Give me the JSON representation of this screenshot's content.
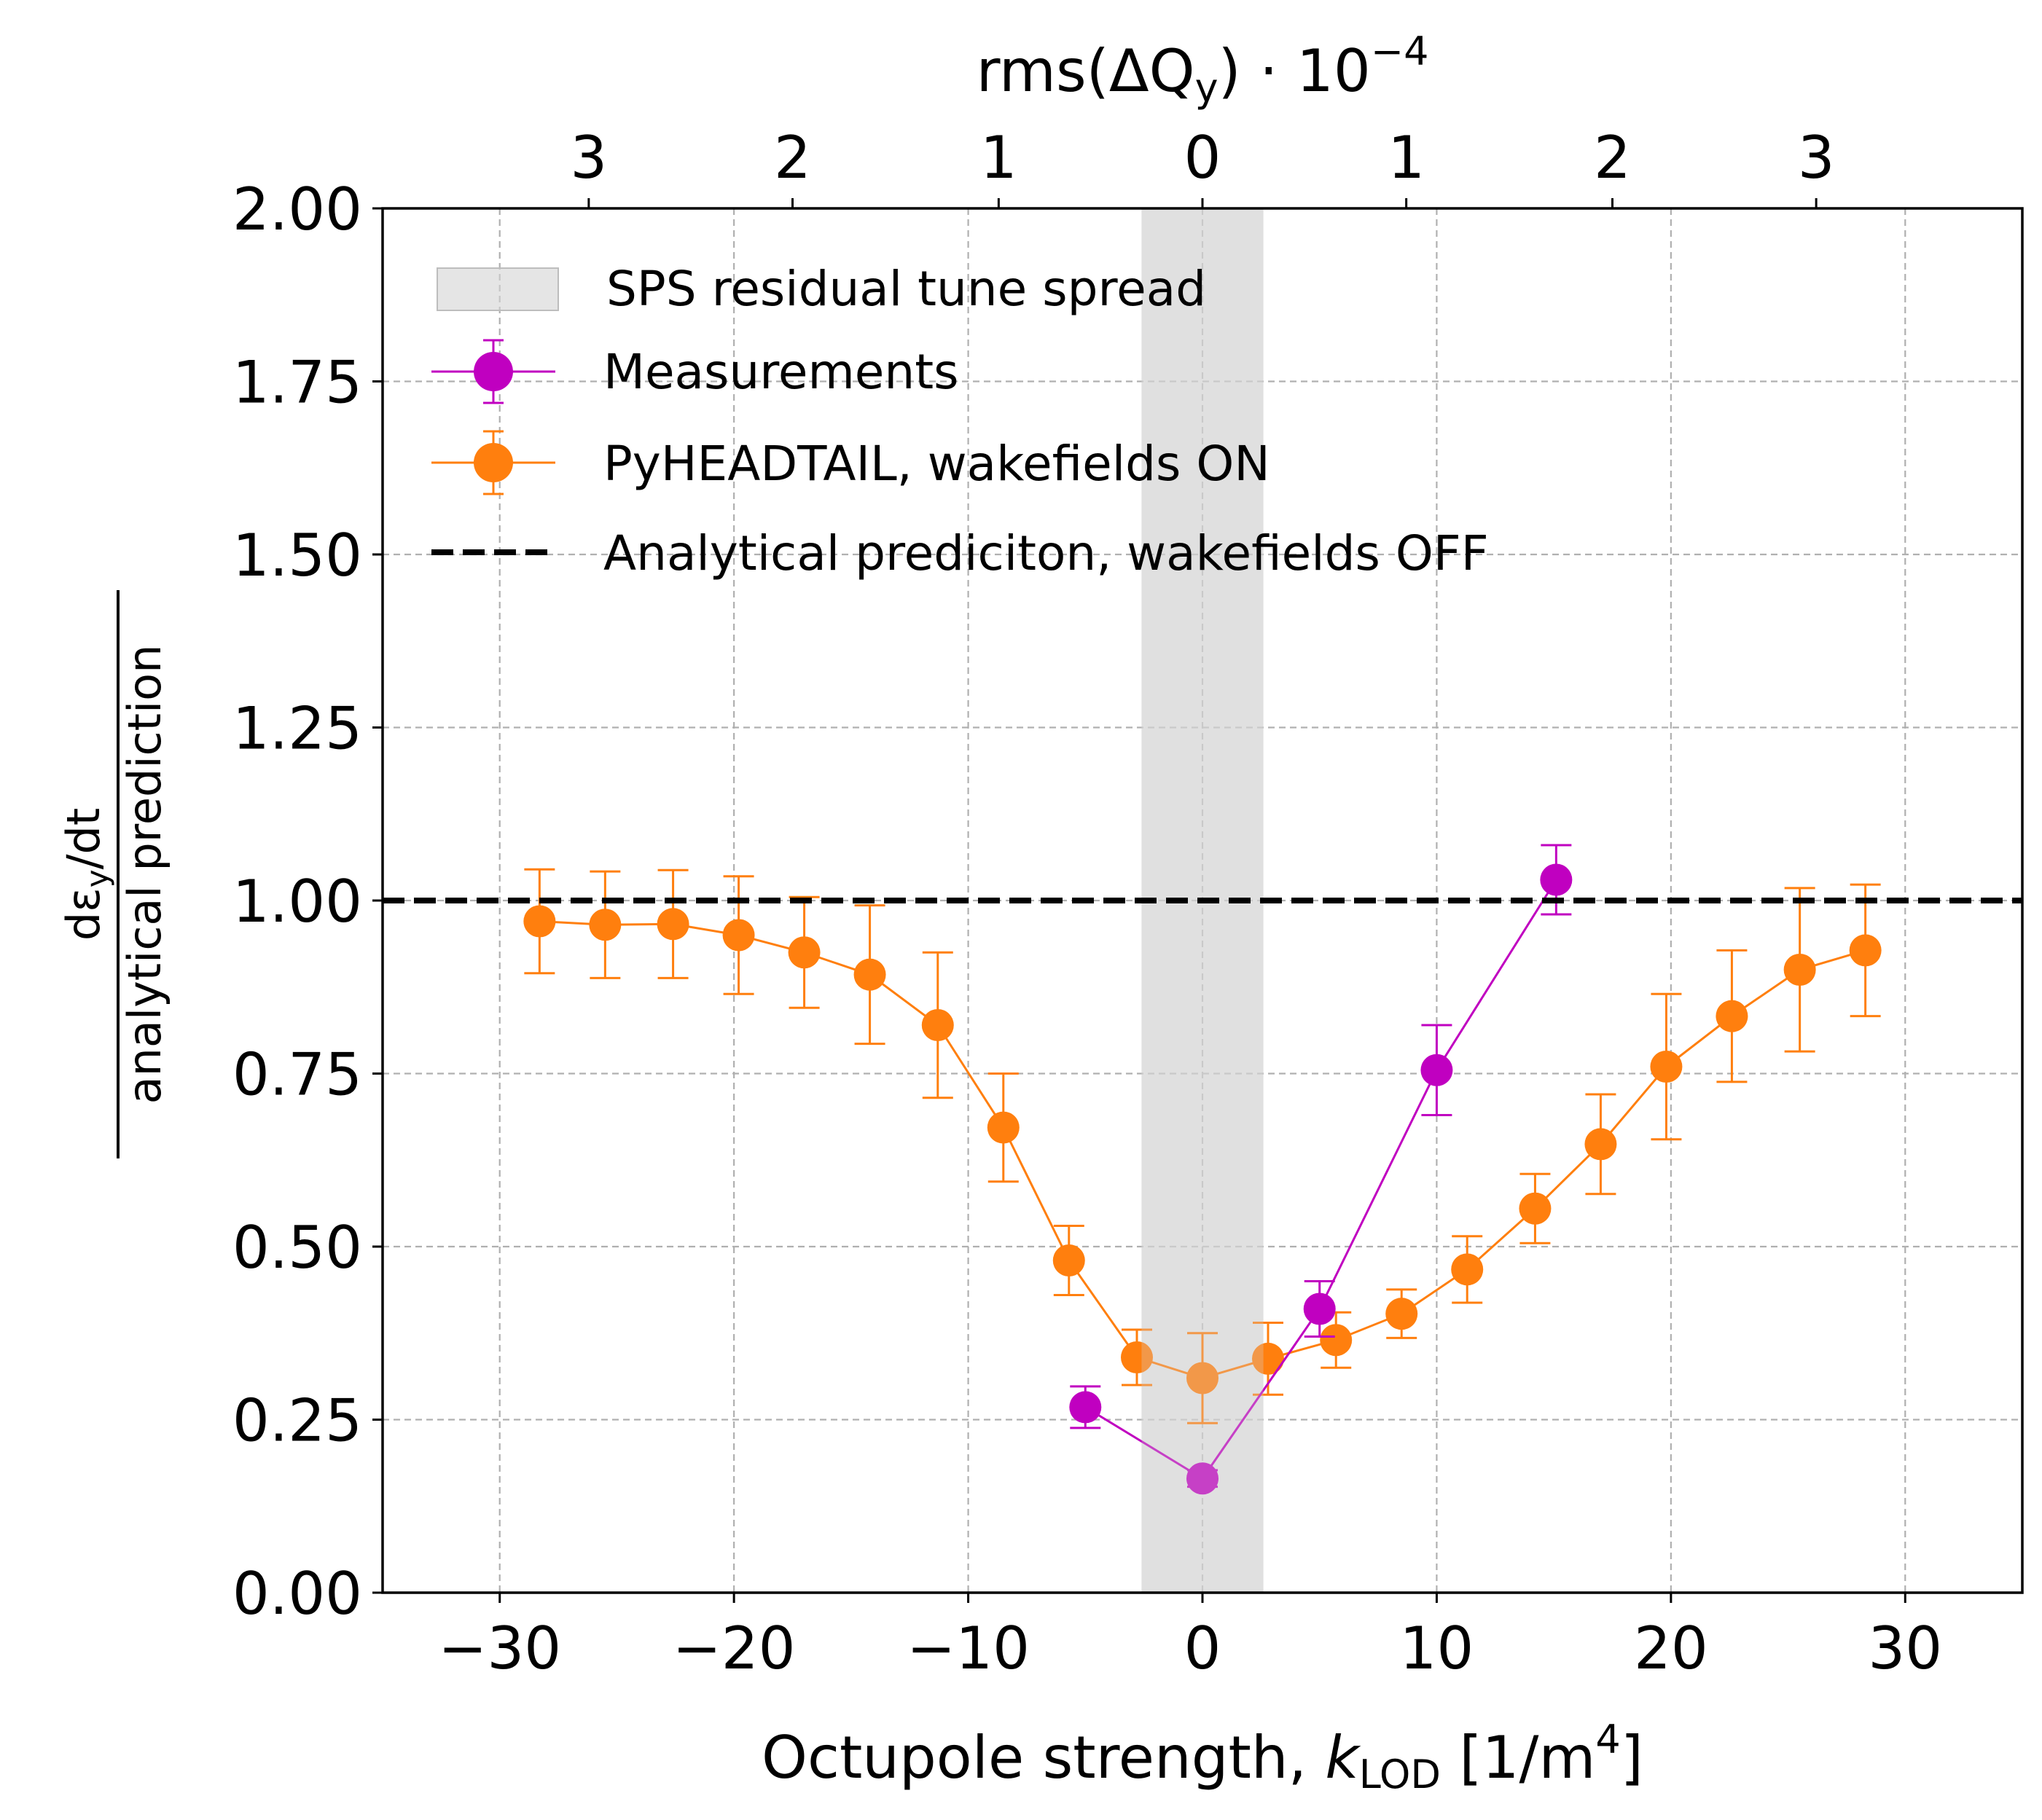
{
  "chart_data": {
    "type": "line",
    "xlabel": {
      "prefix": "Octupole strength, ",
      "var": "k",
      "sub": "LOD",
      "unit_pre": " [1/m",
      "unit_sup": "4",
      "unit_post": "]"
    },
    "ylabel": {
      "numerator_pre": "dε",
      "numerator_sub": "y",
      "numerator_post": "/dt",
      "denominator": "analytical prediction"
    },
    "top_axis_label": {
      "pre": "rms(ΔQ",
      "sub": "y",
      "post": ") · 10",
      "sup": "−4"
    },
    "xlim": [
      -35,
      35
    ],
    "ylim": [
      0,
      2
    ],
    "xticks": [
      -30,
      -20,
      -10,
      0,
      10,
      20,
      30
    ],
    "xtick_labels": [
      "−30",
      "−20",
      "−10",
      "0",
      "10",
      "20",
      "30"
    ],
    "yticks": [
      0,
      0.25,
      0.5,
      0.75,
      1.0,
      1.25,
      1.5,
      1.75,
      2.0
    ],
    "ytick_labels": [
      "0.00",
      "0.25",
      "0.50",
      "0.75",
      "1.00",
      "1.25",
      "1.50",
      "1.75",
      "2.00"
    ],
    "top_ticks": [
      {
        "x": -26.2,
        "label": "3"
      },
      {
        "x": -17.5,
        "label": "2"
      },
      {
        "x": -8.7,
        "label": "1"
      },
      {
        "x": 0,
        "label": "0"
      },
      {
        "x": 8.7,
        "label": "1"
      },
      {
        "x": 17.5,
        "label": "2"
      },
      {
        "x": 26.2,
        "label": "3"
      }
    ],
    "grid": true,
    "legend_position": "top-left",
    "band": {
      "name": "SPS residual tune spread",
      "x": [
        -2.6,
        2.6
      ],
      "color": "#d3d3d3"
    },
    "hline": {
      "name": "Analytical prediciton, wakefields OFF",
      "y": 1.0,
      "color": "#000000"
    },
    "series": [
      {
        "name": "Measurements",
        "color": "#c000c0",
        "x": [
          -5.0,
          0.0,
          5.0,
          10.0,
          15.1
        ],
        "y": [
          0.268,
          0.165,
          0.41,
          0.755,
          1.03
        ],
        "err": [
          0.03,
          0.012,
          0.04,
          0.065,
          0.05
        ]
      },
      {
        "name": "PyHEADTAIL, wakefields ON",
        "color": "#ff7f0e",
        "x": [
          -28.3,
          -25.5,
          -22.6,
          -19.8,
          -17.0,
          -14.2,
          -11.3,
          -8.5,
          -5.7,
          -2.8,
          0.0,
          2.8,
          5.7,
          8.5,
          11.3,
          14.2,
          17.0,
          19.8,
          22.6,
          25.5,
          28.3
        ],
        "y": [
          0.97,
          0.965,
          0.966,
          0.95,
          0.925,
          0.893,
          0.82,
          0.672,
          0.48,
          0.34,
          0.31,
          0.338,
          0.365,
          0.403,
          0.467,
          0.555,
          0.648,
          0.76,
          0.833,
          0.9,
          0.928
        ],
        "err": [
          0.075,
          0.077,
          0.078,
          0.085,
          0.08,
          0.1,
          0.105,
          0.078,
          0.05,
          0.04,
          0.065,
          0.052,
          0.04,
          0.035,
          0.048,
          0.05,
          0.072,
          0.105,
          0.095,
          0.118,
          0.095
        ]
      }
    ]
  }
}
